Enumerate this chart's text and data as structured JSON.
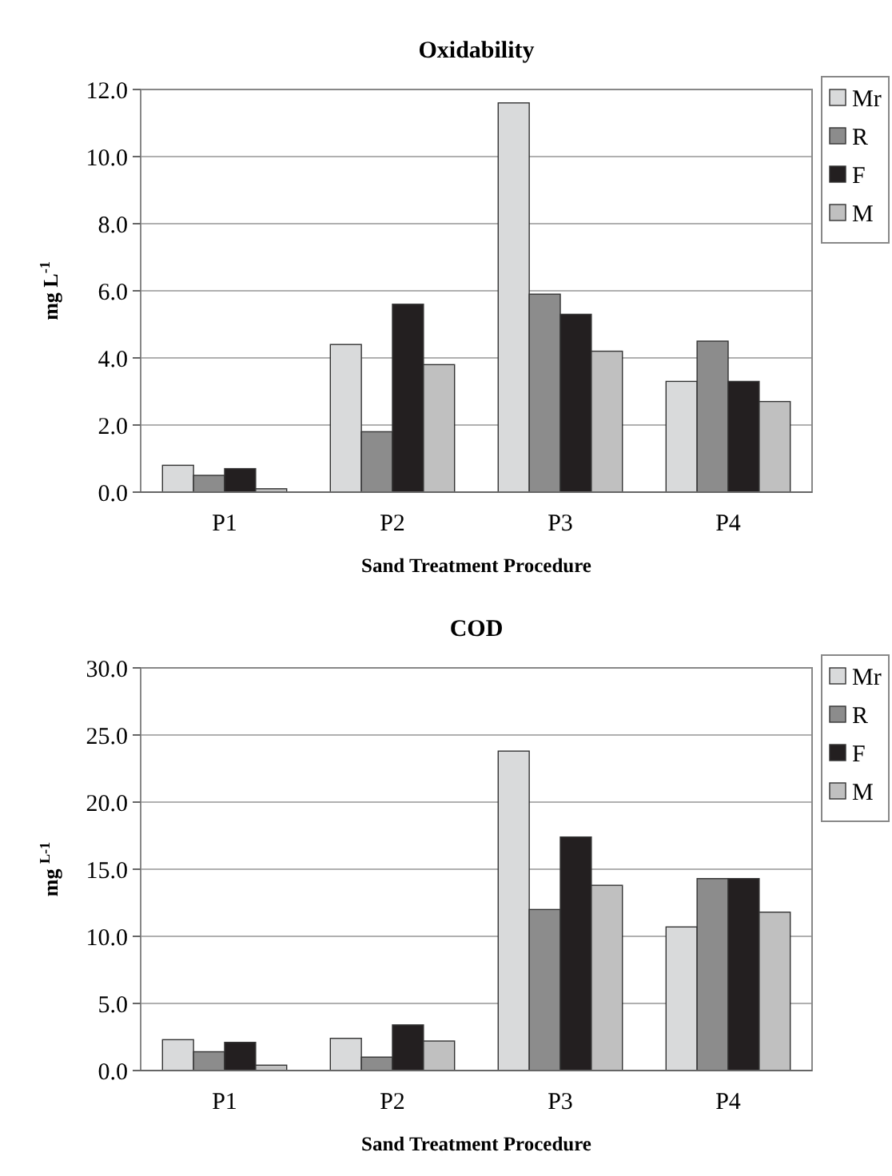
{
  "chart_data": [
    {
      "type": "bar",
      "title": "Oxidability",
      "xlabel": "Sand Treatment Procedure",
      "ylabel": "mg L$^{-1}$",
      "categories": [
        "P1",
        "P2",
        "P3",
        "P4"
      ],
      "series": [
        {
          "name": "Mr",
          "color": "#d9dadb",
          "values": [
            0.8,
            4.4,
            11.6,
            3.3
          ]
        },
        {
          "name": "R",
          "color": "#8c8c8c",
          "values": [
            0.5,
            1.8,
            5.9,
            4.5
          ]
        },
        {
          "name": "F",
          "color": "#231f20",
          "values": [
            0.7,
            5.6,
            5.3,
            3.3
          ]
        },
        {
          "name": "M",
          "color": "#c0c0c0",
          "values": [
            0.1,
            3.8,
            4.2,
            2.7
          ]
        }
      ],
      "ylim": [
        0,
        12
      ],
      "yticks": [
        {
          "value": 0,
          "label": "0.0"
        },
        {
          "value": 2,
          "label": "2.0"
        },
        {
          "value": 4,
          "label": "4.0"
        },
        {
          "value": 6,
          "label": "6.0"
        },
        {
          "value": 8,
          "label": "8.0"
        },
        {
          "value": 10,
          "label": "10.0"
        },
        {
          "value": 12,
          "label": "12.0"
        }
      ],
      "grid": "y",
      "legend": "top right"
    },
    {
      "type": "bar",
      "title": "COD",
      "xlabel": "Sand Treatment Procedure",
      "ylabel": "mg $^{L-1}$",
      "categories": [
        "P1",
        "P2",
        "P3",
        "P4"
      ],
      "series": [
        {
          "name": "Mr",
          "color": "#d9dadb",
          "values": [
            2.3,
            2.4,
            23.8,
            10.7
          ]
        },
        {
          "name": "R",
          "color": "#8c8c8c",
          "values": [
            1.4,
            1.0,
            12.0,
            14.3
          ]
        },
        {
          "name": "F",
          "color": "#231f20",
          "values": [
            2.1,
            3.4,
            17.4,
            14.3
          ]
        },
        {
          "name": "M",
          "color": "#c0c0c0",
          "values": [
            0.4,
            2.2,
            13.8,
            11.8
          ]
        }
      ],
      "ylim": [
        0,
        30
      ],
      "yticks": [
        {
          "value": 0,
          "label": "0.0"
        },
        {
          "value": 5,
          "label": "5.0"
        },
        {
          "value": 10,
          "label": "10.0"
        },
        {
          "value": 15,
          "label": "15.0"
        },
        {
          "value": 20,
          "label": "20.0"
        },
        {
          "value": 25,
          "label": "25.0"
        },
        {
          "value": 30,
          "label": "30.0"
        }
      ],
      "grid": "y",
      "legend": "top right"
    }
  ]
}
